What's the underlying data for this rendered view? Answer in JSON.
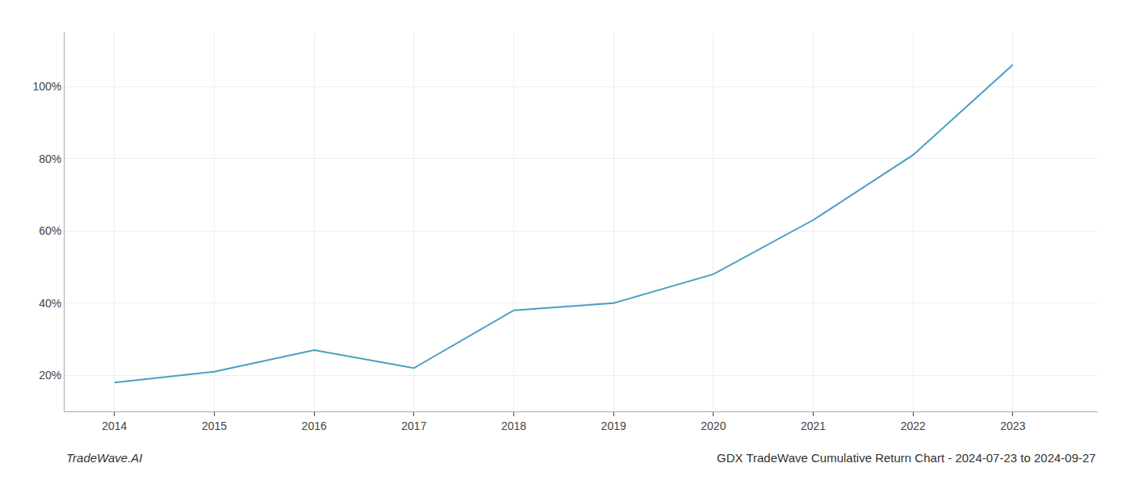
{
  "chart_data": {
    "type": "line",
    "title": "GDX TradeWave Cumulative Return Chart - 2024-07-23 to 2024-09-27",
    "annotations": [
      "TradeWave.AI"
    ],
    "x": [
      2014,
      2015,
      2016,
      2017,
      2018,
      2019,
      2020,
      2021,
      2022,
      2023
    ],
    "values": [
      18,
      21,
      27,
      22,
      38,
      40,
      48,
      63,
      81,
      106
    ],
    "color": "#4a9fc4",
    "xlim": [
      2013.5,
      2023.85
    ],
    "ylim": [
      10,
      115
    ],
    "xticks": [
      2014,
      2015,
      2016,
      2017,
      2018,
      2019,
      2020,
      2021,
      2022,
      2023
    ],
    "yticks": [
      {
        "value": 20,
        "label": "20%"
      },
      {
        "value": 40,
        "label": "40%"
      },
      {
        "value": 60,
        "label": "60%"
      },
      {
        "value": 80,
        "label": "80%"
      },
      {
        "value": 100,
        "label": "100%"
      }
    ],
    "grid": true
  }
}
